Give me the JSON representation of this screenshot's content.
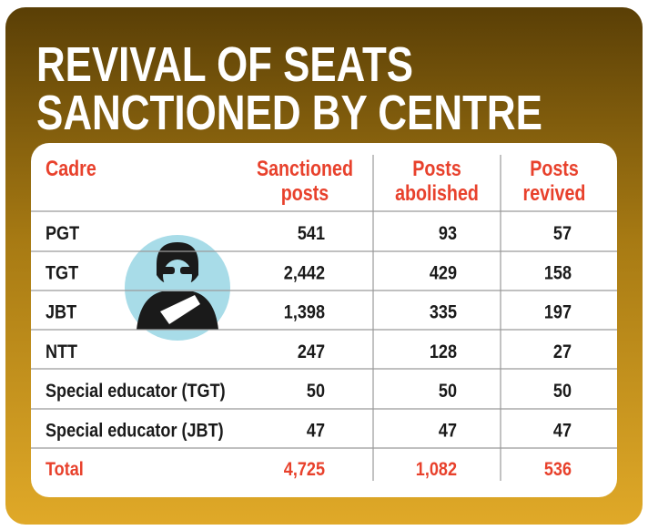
{
  "header": {
    "title": [
      "REVIVAL OF SEATS",
      "SANCTIONED BY CENTRE"
    ]
  },
  "table": {
    "columns": [
      [
        "Cadre"
      ],
      [
        "Sanctioned",
        "posts"
      ],
      [
        "Posts",
        "abolished"
      ],
      [
        "Posts",
        "revived"
      ]
    ],
    "rows": [
      [
        "PGT",
        "541",
        "93",
        "57"
      ],
      [
        "TGT",
        "2,442",
        "429",
        "158"
      ],
      [
        "JBT",
        "1,398",
        "335",
        "197"
      ],
      [
        "NTT",
        "247",
        "128",
        "27"
      ],
      [
        "Special educator (TGT)",
        "50",
        "50",
        "50"
      ],
      [
        "Special educator (JBT)",
        "47",
        "47",
        "47"
      ]
    ],
    "total": [
      "Total",
      "4,725",
      "1,082",
      "536"
    ]
  }
}
